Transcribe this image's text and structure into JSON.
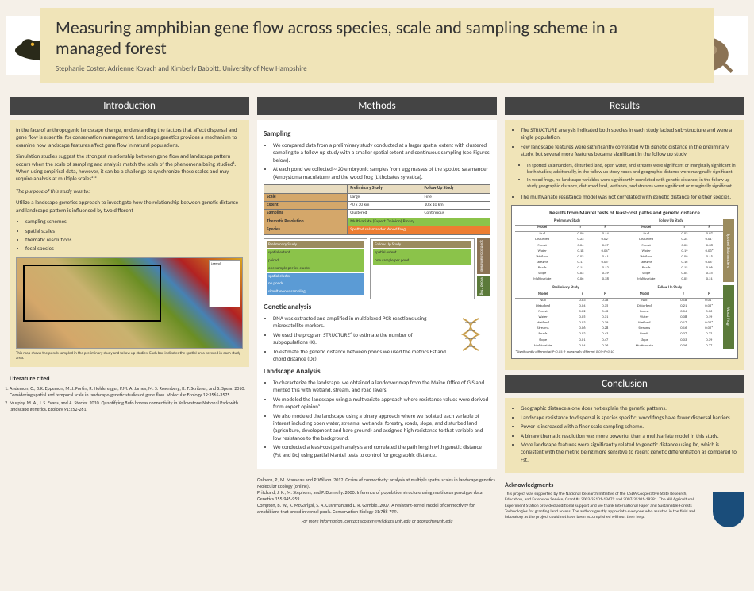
{
  "header": {
    "title": "Measuring amphibian gene flow across species, scale and sampling scheme in a managed forest",
    "authors": "Stephanie Coster, Adrienne Kovach and Kimberly Babbitt, University of New Hampshire"
  },
  "sections": {
    "intro": {
      "head": "Introduction",
      "p1": "In the face of anthropogenic landscape change, understanding the factors that affect dispersal and gene flow is essential for conservation management. Landscape genetics provides a mechanism to examine how landscape features affect gene flow in natural populations.",
      "p2": "Simulation studies suggest the strongest relationship between gene flow and landscape pattern occurs when the scale of sampling and analysis match the scale of the phenomena being studied¹. When using empirical data, however, it can be a challenge to synchronize these scales and may require analysis at multiple scales².³",
      "purpose": "The purpose of this study was to:",
      "purpose_text": "Utilize a landscape genetics approach to investigate how the relationship between genetic distance and landscape pattern is influenced by two different",
      "bullets": [
        "sampling schemes",
        "spatial scales",
        "thematic resolutions",
        "focal species"
      ],
      "map_caption": "This map shows the ponds sampled in the preliminary study and follow up studies. Each box indicates the spatial area covered in each study area.",
      "legend_label": "Legend"
    },
    "methods": {
      "head": "Methods",
      "sampling": "Sampling",
      "m1": "We compared data from a preliminary study conducted at a larger spatial extent with clustered sampling to a follow up study with a smaller spatial extent and continuous sampling (see Figures below).",
      "m2": "At each pond we collected ~ 20 embryonic samples from egg masses of the spotted salamander (Ambystoma maculatum) and the wood frog (Lithobates sylvatica).",
      "tbl": {
        "cols": [
          "",
          "Preliminary Study",
          "Follow Up Study"
        ],
        "rows": [
          [
            "Scale",
            "Large",
            "Fine"
          ],
          [
            "Extent",
            "40 x 30 km",
            "10 x 10 km"
          ],
          [
            "Sampling",
            "Clustered",
            "Continuous"
          ],
          [
            "Thematic Resolution",
            "Multivariate (Expert Opinion) Binary",
            ""
          ],
          [
            "Species",
            "Spotted salamander Wood frog",
            ""
          ]
        ]
      },
      "diag": {
        "prelim": "Preliminary Study",
        "follow": "Follow Up Study",
        "items1": [
          "spatial extent",
          "paired",
          "one sample per ice cluster"
        ],
        "items2": [
          "spatial extent",
          "one sample per pond"
        ],
        "items3": [
          "spatial cluster",
          "no ponds",
          "simultaneous sampling"
        ],
        "sp1": "Spotted Salamander",
        "sp2": "Wood Frog"
      },
      "gen": "Genetic analysis",
      "g1": "DNA was extracted and amplified in multiplexed PCR reactions using microsatellite markers.",
      "g2": "We used the program STRUCTURE⁶ to estimate the number of subpopulations (K).",
      "g3": "To estimate the genetic distance between ponds we used the metrics Fst and chord distance (Dc).",
      "land": "Landscape Analysis",
      "l1": "To characterize the landscape, we obtained a landcover map from the Maine Office of GIS and merged this with wetland, stream, and road layers.",
      "l2": "We modeled the landscape using a multivariate approach where resistance values were derived from expert opinion⁵.",
      "l3": "We also modeled the landscape using a binary approach where we isolated each variable of interest including open water, streams, wetlands, forestry, roads, slope, and disturbed land (agriculture, development and bare ground) and assigned high resistance to that variable and low resistance to the background.",
      "l4": "We conducted a least-cost path analysis and correlated the path length with genetic distance (Fst and Dc) using partial Mantel tests to control for geographic distance."
    },
    "results": {
      "head": "Results",
      "r1": "The STRUCTURE analysis indicated both species in each study lacked sub-structure and were a single population.",
      "r2": "Few landscape features were significantly correlated with genetic distance in the preliminary study, but several more features became significant in the follow up study.",
      "r2a": "In spotted salamanders, disturbed land, open water, and streams were significant or marginally significant in both studies; additionally, in the follow up study roads and geographic distance were marginally significant.",
      "r2b": "In wood frogs, no landscape variables were significantly correlated with genetic distance; in the follow up study geographic distance, disturbed land, wetlands, and streams were significant or marginally significant.",
      "r3": "The multivariate resistance model was not correlated with genetic distance for either species.",
      "tbl_title": "Results from Mantel tests of least-cost paths and genetic distance",
      "tbl_cols": [
        "Model",
        "r",
        "P",
        "r",
        "P"
      ],
      "tbl_head1": "Preliminary Study",
      "tbl_head2": "Follow Up Study",
      "sp1": "Spotted Salamanders",
      "sp2": "Wood Frogs",
      "rows1": [
        [
          "Null",
          "0.09",
          "0.14",
          "0.02",
          "0.07"
        ],
        [
          "Disturbed",
          "0.23",
          "0.02*",
          "0.24",
          "0.01*"
        ],
        [
          "Forest",
          "0.04",
          "0.37",
          "0.03",
          "0.38"
        ],
        [
          "Water",
          "0.18",
          "0.04*",
          "0.19",
          "0.03*"
        ],
        [
          "Wetland",
          "0.02",
          "0.41",
          "0.09",
          "0.15"
        ],
        [
          "Streams",
          "0.17",
          "0.05*",
          "0.16",
          "0.04*"
        ],
        [
          "Roads",
          "0.11",
          "0.12",
          "0.15",
          "0.06"
        ],
        [
          "Slope",
          "0.03",
          "0.39",
          "0.04",
          "0.35"
        ],
        [
          "Multivariate",
          "0.06",
          "0.28",
          "0.05",
          "0.31"
        ]
      ],
      "rows2": [
        [
          "Null",
          "0.03",
          "0.38",
          "0.18",
          "0.04*"
        ],
        [
          "Disturbed",
          "0.04",
          "0.35",
          "0.21",
          "0.02*"
        ],
        [
          "Forest",
          "0.02",
          "0.42",
          "0.04",
          "0.36"
        ],
        [
          "Water",
          "0.05",
          "0.31",
          "0.08",
          "0.19"
        ],
        [
          "Wetland",
          "0.03",
          "0.39",
          "0.17",
          "0.05*"
        ],
        [
          "Streams",
          "0.06",
          "0.28",
          "0.16",
          "0.05*"
        ],
        [
          "Roads",
          "0.02",
          "0.43",
          "0.07",
          "0.22"
        ],
        [
          "Slope",
          "0.01",
          "0.47",
          "0.03",
          "0.39"
        ],
        [
          "Multivariate",
          "0.04",
          "0.36",
          "0.06",
          "0.27"
        ]
      ],
      "note": "*Significantly different at P<0.05; † marginally different 0.05<P<0.10"
    },
    "conclusion": {
      "head": "Conclusion",
      "c1": "Geographic distance alone does not explain the genetic patterns.",
      "c2": "Landscape resistance to dispersal is species specific; wood frogs have fewer dispersal barriers.",
      "c3": "Power is increased with a finer scale sampling scheme.",
      "c4": "A binary thematic resolution was more powerful than a multivariate model in this study.",
      "c5": "More landscape features were significantly related to genetic distance using Dc, which is consistent with the metric being more sensitive to recent genetic differentiation as compared to Fst."
    },
    "lit": {
      "head": "Literature cited",
      "refs": [
        "Anderson, C., B.K. Epperson, M. J. Fortin, R. Holderegger, P.M. A. James, M. S. Rosenberg, K. T. Scribner, and S. Spear. 2010. Considering spatial and temporal scale in landscape-genetic studies of gene flow. Molecular Ecology 19:3565-3575.",
        "Murphy, M. A., J. S. Evans, and A. Storfer. 2010. Quantifying Bufo boreas connectivity in Yellowstone National Park with landscape genetics. Ecology 91:252-261."
      ],
      "refs2": [
        "Galpern, P., M. Manseau and P. Wilson. 2012. Grains of connectivity: analysis at multiple spatial scales in landscape genetics. Molecular Ecology (online).",
        "Pritchard, J. K., M. Stephens, and P. Donnelly. 2000. Inference of population structure using multilocus genotype data. Genetics 155:945-959.",
        "Compton, B. W., K. McGarigal, S. A. Cushman and L. R. Gamble. 2007. A resistant-kernel model of connectivity for amphibians that breed in vernal pools. Conservation Biology 21:788-799."
      ]
    },
    "ack": {
      "head": "Acknowledgments",
      "text": "This project was supported by the National Research Initiative of the USDA Cooperative State Research, Education, and Extension Service, Grant #s 2003-35101-13479 and 2007-35101-18281. The NH Agricultural Experiment Station provided additional support and we thank International Paper and Sustainable Forests Technologies for granting land access. The authors greatly appreciate everyone who assisted in the field and laboratory as the project could not have been accomplished without their help."
    },
    "footer": "For more information, contact scoster@wildcats.unh.edu or acovach@unh.edu"
  }
}
